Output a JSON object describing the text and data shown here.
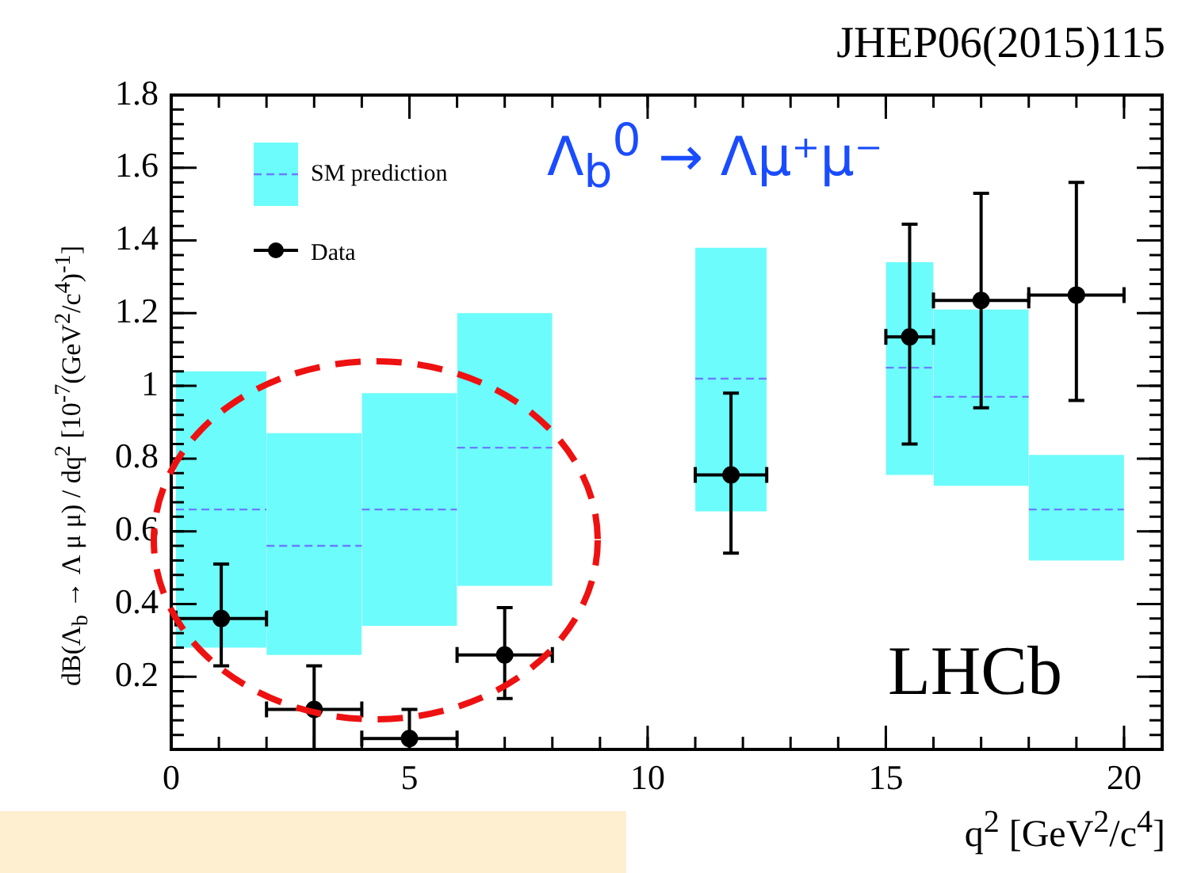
{
  "chart_data": {
    "type": "scatter",
    "title": "JHEP06(2015)115",
    "xlabel": "q$^{2}$ [GeV$^{2}$/c$^{4}$]",
    "ylabel": "dB(Λ$_{b}$ → Λ μ μ) / dq$^{2}$ [10$^{-7}$(GeV$^{2}$/c$^{4}$)$^{-1}$]",
    "annotations": [
      "Λ$_{b}$$^{0}$ → Λμ⁺μ⁻",
      "LHCb"
    ],
    "xlim": [
      0,
      20.8
    ],
    "xticks": [
      0,
      5,
      10,
      15,
      20
    ],
    "ylim": [
      0,
      1.8
    ],
    "yticks": [
      0.2,
      0.4,
      0.6,
      0.8,
      1,
      1.2,
      1.4,
      1.6,
      1.8
    ],
    "grid": false,
    "legend": "top left",
    "series": [
      {
        "name": "SM prediction",
        "type": "line",
        "color": "#6b7cff",
        "line_style": "dashed",
        "marker": "none",
        "x": [
          0.1,
          2
        ],
        "values": [
          0.66,
          0.66
        ],
        "lower": [
          0.28,
          0.28
        ],
        "upper": [
          1.04,
          1.04
        ]
      },
      {
        "type": "line",
        "color": "#6b7cff",
        "line_style": "dashed",
        "marker": "none",
        "x": [
          2,
          4
        ],
        "values": [
          0.56,
          0.56
        ],
        "lower": [
          0.26,
          0.26
        ],
        "upper": [
          0.87,
          0.87
        ]
      },
      {
        "type": "line",
        "color": "#6b7cff",
        "line_style": "dashed",
        "marker": "none",
        "x": [
          4,
          6
        ],
        "values": [
          0.66,
          0.66
        ],
        "lower": [
          0.34,
          0.34
        ],
        "upper": [
          0.98,
          0.98
        ]
      },
      {
        "type": "line",
        "color": "#6b7cff",
        "line_style": "dashed",
        "marker": "none",
        "x": [
          6,
          8
        ],
        "values": [
          0.83,
          0.83
        ],
        "lower": [
          0.45,
          0.45
        ],
        "upper": [
          1.2,
          1.2
        ]
      },
      {
        "type": "line",
        "color": "#6b7cff",
        "line_style": "dashed",
        "marker": "none",
        "x": [
          11,
          12.5
        ],
        "values": [
          1.02,
          1.02
        ],
        "lower": [
          0.655,
          0.655
        ],
        "upper": [
          1.38,
          1.38
        ]
      },
      {
        "type": "line",
        "color": "#6b7cff",
        "line_style": "dashed",
        "marker": "none",
        "x": [
          15,
          16
        ],
        "values": [
          1.05,
          1.05
        ],
        "lower": [
          0.755,
          0.755
        ],
        "upper": [
          1.34,
          1.34
        ]
      },
      {
        "type": "line",
        "color": "#6b7cff",
        "line_style": "dashed",
        "marker": "none",
        "x": [
          16,
          18
        ],
        "values": [
          0.97,
          0.97
        ],
        "lower": [
          0.725,
          0.725
        ],
        "upper": [
          1.21,
          1.21
        ]
      },
      {
        "type": "line",
        "color": "#6b7cff",
        "line_style": "dashed",
        "marker": "none",
        "x": [
          18,
          20
        ],
        "values": [
          0.66,
          0.66
        ],
        "lower": [
          0.52,
          0.52
        ],
        "upper": [
          0.81,
          0.81
        ]
      },
      {
        "name": "Data",
        "color": "#000000",
        "marker": "circle",
        "x": [
          1.05,
          3,
          5,
          7,
          11.75,
          15.5,
          17,
          19
        ],
        "values": [
          0.36,
          0.11,
          0.03,
          0.26,
          0.755,
          1.135,
          1.235,
          1.25
        ],
        "errors": [
          [
            0.23,
            0.51
          ],
          [
            0,
            0.23
          ],
          [
            0,
            0.11
          ],
          [
            0.14,
            0.39
          ],
          [
            0.54,
            0.98
          ],
          [
            0.84,
            1.445
          ],
          [
            0.94,
            1.53
          ],
          [
            0.96,
            1.56
          ]
        ],
        "xerrors": [
          [
            0.1,
            2
          ],
          [
            2,
            4
          ],
          [
            4,
            6
          ],
          [
            6,
            8
          ],
          [
            11,
            12.5
          ],
          [
            15,
            16
          ],
          [
            16,
            18
          ],
          [
            18,
            20
          ]
        ]
      }
    ]
  }
}
